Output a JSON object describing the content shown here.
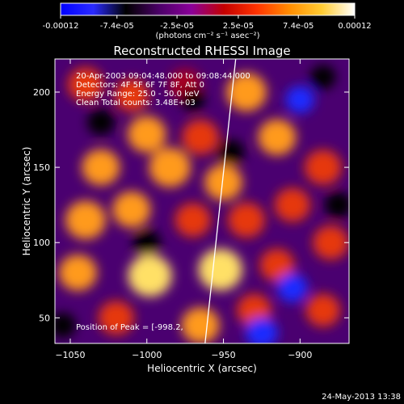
{
  "colorbar": {
    "tick_labels": [
      "-0.00012",
      "-7.4e-05",
      "-2.5e-05",
      "2.5e-05",
      "7.4e-05",
      "0.00012"
    ],
    "tick_values": [
      -0.00012,
      -7.4e-05,
      -2.5e-05,
      2.5e-05,
      7.4e-05,
      0.00012
    ],
    "range": [
      -0.00012,
      0.00012
    ],
    "units_label": "(photons cm⁻² s⁻¹ asec⁻²)",
    "gradient_colors": [
      "#0000ff",
      "#2a2aff",
      "#000000",
      "#4a0066",
      "#8a0099",
      "#c40000",
      "#ff3300",
      "#ff8c00",
      "#ffcc33",
      "#ffffff"
    ]
  },
  "chart_data": {
    "type": "heatmap",
    "title": "Reconstructed RHESSI Image",
    "xlabel": "Heliocentric X (arcsec)",
    "ylabel": "Heliocentric Y (arcsec)",
    "xlim": [
      -1060,
      -868
    ],
    "ylim": [
      33,
      222
    ],
    "xticks": [
      -1050,
      -1000,
      -950,
      -900
    ],
    "xtick_labels": [
      "−1050",
      "−1000",
      "−950",
      "−900"
    ],
    "yticks": [
      50,
      100,
      150,
      200
    ],
    "ytick_labels": [
      "50",
      "100",
      "150",
      "200"
    ],
    "annotations": [
      "20-Apr-2003 09:04:48.000 to 09:08:44.000",
      "Detectors: 4F 5F 6F 7F 8F, Att 0",
      "Energy Range: 25.0 - 50.0 keV",
      "Clean     Total counts: 3.48E+03"
    ],
    "peak_label": "Position of Peak = [-998.2,",
    "limb_line": [
      [
        -962,
        33
      ],
      [
        -942,
        222
      ]
    ],
    "blobs": [
      {
        "x": -1040,
        "y": 205,
        "v": 0.5
      },
      {
        "x": -1010,
        "y": 198,
        "v": 0.45
      },
      {
        "x": -975,
        "y": 205,
        "v": 0.4
      },
      {
        "x": -1000,
        "y": 172,
        "v": 0.62
      },
      {
        "x": -965,
        "y": 170,
        "v": 0.55
      },
      {
        "x": -935,
        "y": 200,
        "v": 0.7
      },
      {
        "x": -915,
        "y": 170,
        "v": 0.6
      },
      {
        "x": -885,
        "y": 150,
        "v": 0.55
      },
      {
        "x": -1030,
        "y": 150,
        "v": 0.6
      },
      {
        "x": -985,
        "y": 150,
        "v": 0.75
      },
      {
        "x": -950,
        "y": 140,
        "v": 0.6
      },
      {
        "x": -1040,
        "y": 115,
        "v": 0.7
      },
      {
        "x": -1010,
        "y": 122,
        "v": 0.6
      },
      {
        "x": -970,
        "y": 115,
        "v": 0.5
      },
      {
        "x": -935,
        "y": 115,
        "v": 0.55
      },
      {
        "x": -905,
        "y": 125,
        "v": 0.5
      },
      {
        "x": -1045,
        "y": 80,
        "v": 0.6
      },
      {
        "x": -998,
        "y": 78,
        "v": 0.85
      },
      {
        "x": -952,
        "y": 82,
        "v": 0.85
      },
      {
        "x": -915,
        "y": 85,
        "v": 0.45
      },
      {
        "x": -880,
        "y": 100,
        "v": 0.5
      },
      {
        "x": -1020,
        "y": 50,
        "v": 0.5
      },
      {
        "x": -965,
        "y": 45,
        "v": 0.6
      },
      {
        "x": -930,
        "y": 55,
        "v": 0.45
      },
      {
        "x": -885,
        "y": 55,
        "v": 0.45
      },
      {
        "x": -1030,
        "y": 180,
        "v": -0.4
      },
      {
        "x": -945,
        "y": 160,
        "v": -0.35
      },
      {
        "x": -900,
        "y": 195,
        "v": -0.5
      },
      {
        "x": -1000,
        "y": 100,
        "v": -0.4
      },
      {
        "x": -905,
        "y": 70,
        "v": -0.6
      },
      {
        "x": -885,
        "y": 210,
        "v": -0.3
      },
      {
        "x": -925,
        "y": 40,
        "v": -0.7
      },
      {
        "x": -1055,
        "y": 45,
        "v": -0.35
      },
      {
        "x": -875,
        "y": 125,
        "v": -0.4
      },
      {
        "x": -970,
        "y": 195,
        "v": -0.2
      }
    ]
  },
  "footer": {
    "date_stamp": "24-May-2013 13:38"
  }
}
